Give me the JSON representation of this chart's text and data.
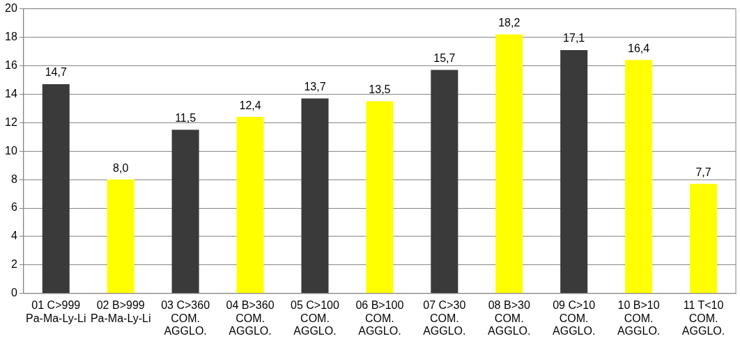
{
  "chart_data": {
    "type": "bar",
    "categories": [
      "01 C>999 Pa-Ma-Ly-Li",
      "02 B>999 Pa-Ma-Ly-Li",
      "03 C>360 COM. AGGLO.",
      "04 B>360 COM. AGGLO.",
      "05 C>100 COM. AGGLO.",
      "06 B>100 COM. AGGLO.",
      "07 C>30 COM. AGGLO.",
      "08 B>30 COM. AGGLO.",
      "09 C>10 COM. AGGLO.",
      "10 B>10 COM. AGGLO.",
      "11 T<10 COM. AGGLO."
    ],
    "values": [
      14.7,
      8.0,
      11.5,
      12.4,
      13.7,
      13.5,
      15.7,
      18.2,
      17.1,
      16.4,
      7.7
    ],
    "value_labels": [
      "14,7",
      "8,0",
      "11,5",
      "12,4",
      "13,7",
      "13,5",
      "15,7",
      "18,2",
      "17,1",
      "16,4",
      "7,7"
    ],
    "colors": [
      "#3a3a3a",
      "#ffff00",
      "#3a3a3a",
      "#ffff00",
      "#3a3a3a",
      "#ffff00",
      "#3a3a3a",
      "#ffff00",
      "#3a3a3a",
      "#ffff00",
      "#ffff00"
    ],
    "ylim": [
      0,
      20
    ],
    "yticks": [
      0,
      2,
      4,
      6,
      8,
      10,
      12,
      14,
      16,
      18,
      20
    ],
    "grid": "y",
    "legend": false
  }
}
